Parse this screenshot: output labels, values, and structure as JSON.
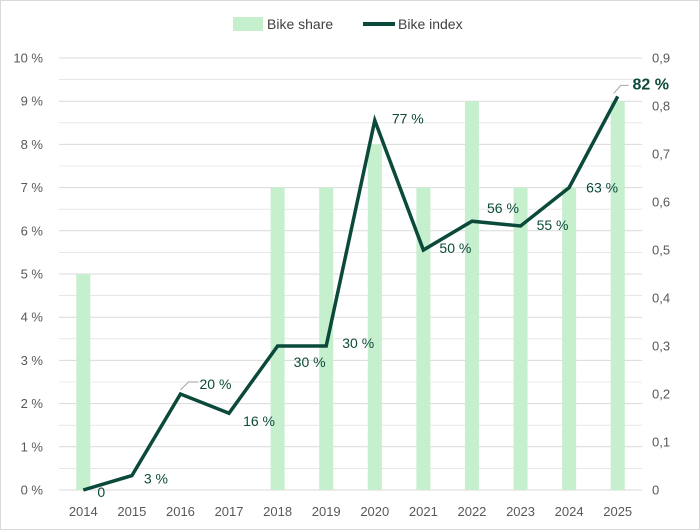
{
  "chart_data": {
    "type": "bar",
    "categories": [
      "2014",
      "2015",
      "2016",
      "2017",
      "2018",
      "2019",
      "2020",
      "2021",
      "2022",
      "2023",
      "2024",
      "2025"
    ],
    "series": [
      {
        "name": "Bike share",
        "type": "bar",
        "axis": "left",
        "values": [
          5,
          null,
          null,
          null,
          7,
          7,
          8,
          7,
          9,
          7,
          7,
          9
        ]
      },
      {
        "name": "Bike index",
        "type": "line",
        "axis": "right",
        "values": [
          0,
          0.03,
          0.2,
          0.16,
          0.3,
          0.3,
          0.77,
          0.5,
          0.56,
          0.55,
          0.63,
          0.82
        ],
        "data_labels": [
          "0",
          "3 %",
          "20 %",
          "16 %",
          "30 %",
          "30 %",
          "77 %",
          "50 %",
          "56 %",
          "55 %",
          "63 %",
          "82 %"
        ]
      }
    ],
    "y_left": {
      "ylim": [
        0,
        10
      ],
      "ticks": [
        "0 %",
        "1 %",
        "2 %",
        "3 %",
        "4 %",
        "5 %",
        "6 %",
        "7 %",
        "8 %",
        "9 %",
        "10 %"
      ]
    },
    "y_right": {
      "ylim": [
        0,
        0.9
      ],
      "ticks": [
        "0",
        "0,1",
        "0,2",
        "0,3",
        "0,4",
        "0,5",
        "0,6",
        "0,7",
        "0,8",
        "0,9"
      ]
    },
    "legend": {
      "position": "top"
    },
    "grid": true,
    "colors": {
      "bar": "#c6efce",
      "line": "#0b4a3a",
      "grid": "#d9d9d9",
      "text": "#595959"
    }
  }
}
